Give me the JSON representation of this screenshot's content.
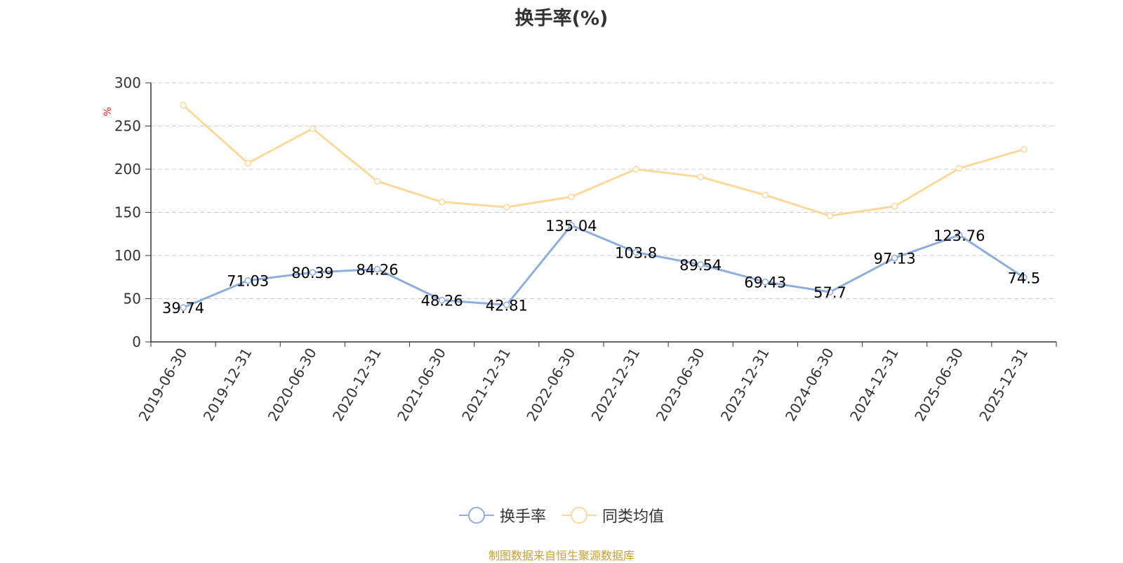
{
  "chart_data": {
    "type": "line",
    "title": "换手率(%)",
    "ylabel": "%",
    "ylim": [
      0,
      300
    ],
    "yticks": [
      0,
      50,
      100,
      150,
      200,
      250,
      300
    ],
    "categories": [
      "2019-06-30",
      "2019-12-31",
      "2020-06-30",
      "2020-12-31",
      "2021-06-30",
      "2021-12-31",
      "2022-06-30",
      "2022-12-31",
      "2023-06-30",
      "2023-12-31",
      "2024-06-30",
      "2024-12-31",
      "2025-06-30",
      "2025-12-31"
    ],
    "series": [
      {
        "name": "换手率",
        "color": "#8eaedb",
        "labels": true,
        "values": [
          39.74,
          71.03,
          80.39,
          84.26,
          48.26,
          42.81,
          135.04,
          103.8,
          89.54,
          69.43,
          57.7,
          97.13,
          123.76,
          74.5
        ]
      },
      {
        "name": "同类均值",
        "color": "#fbd99a",
        "labels": false,
        "values": [
          274,
          207,
          247,
          186,
          162,
          156,
          168,
          200,
          191,
          170,
          146,
          157,
          201,
          223
        ]
      }
    ],
    "grid": true,
    "legend": "bottom-center"
  },
  "source": "制图数据来自恒生聚源数据库"
}
